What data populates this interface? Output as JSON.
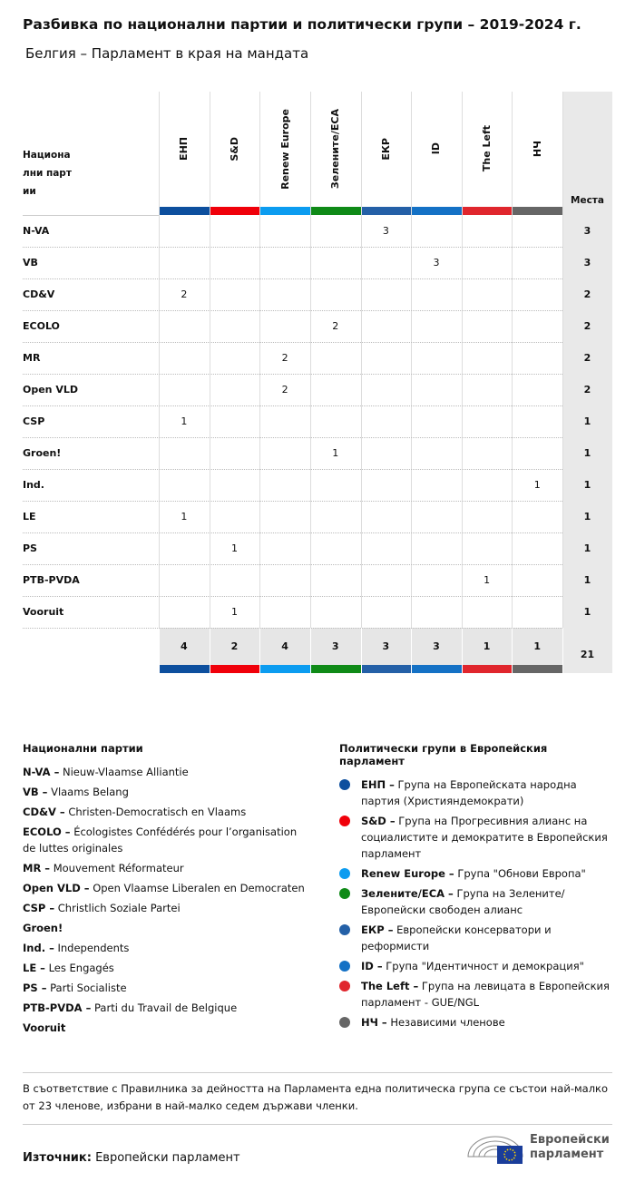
{
  "title": "Разбивка по национални партии и политически групи – 2019-2024 г.",
  "subtitle": "Белгия – Парламент в края на мандата",
  "table": {
    "corner": "Национални партии",
    "seats_header": "Места",
    "groups": [
      {
        "name": "ЕНП",
        "color": "#0d4f9e"
      },
      {
        "name": "S&D",
        "color": "#f0000a"
      },
      {
        "name": "Renew Europe",
        "color": "#0c9cf0"
      },
      {
        "name": "Зелените/ЕСА",
        "color": "#0f8a17"
      },
      {
        "name": "ЕКР",
        "color": "#2460a7"
      },
      {
        "name": "ID",
        "color": "#1471c5"
      },
      {
        "name": "The Left",
        "color": "#e0262d"
      },
      {
        "name": "НЧ",
        "color": "#666666"
      }
    ],
    "rows": [
      {
        "party": "N-VA",
        "cells": [
          null,
          null,
          null,
          null,
          3,
          null,
          null,
          null
        ],
        "total": 3
      },
      {
        "party": "VB",
        "cells": [
          null,
          null,
          null,
          null,
          null,
          3,
          null,
          null
        ],
        "total": 3
      },
      {
        "party": "CD&V",
        "cells": [
          2,
          null,
          null,
          null,
          null,
          null,
          null,
          null
        ],
        "total": 2
      },
      {
        "party": "ECOLO",
        "cells": [
          null,
          null,
          null,
          2,
          null,
          null,
          null,
          null
        ],
        "total": 2
      },
      {
        "party": "MR",
        "cells": [
          null,
          null,
          2,
          null,
          null,
          null,
          null,
          null
        ],
        "total": 2
      },
      {
        "party": "Open VLD",
        "cells": [
          null,
          null,
          2,
          null,
          null,
          null,
          null,
          null
        ],
        "total": 2
      },
      {
        "party": "CSP",
        "cells": [
          1,
          null,
          null,
          null,
          null,
          null,
          null,
          null
        ],
        "total": 1
      },
      {
        "party": "Groen!",
        "cells": [
          null,
          null,
          null,
          1,
          null,
          null,
          null,
          null
        ],
        "total": 1
      },
      {
        "party": "Ind.",
        "cells": [
          null,
          null,
          null,
          null,
          null,
          null,
          null,
          1
        ],
        "total": 1
      },
      {
        "party": "LE",
        "cells": [
          1,
          null,
          null,
          null,
          null,
          null,
          null,
          null
        ],
        "total": 1
      },
      {
        "party": "PS",
        "cells": [
          null,
          1,
          null,
          null,
          null,
          null,
          null,
          null
        ],
        "total": 1
      },
      {
        "party": "PTB-PVDA",
        "cells": [
          null,
          null,
          null,
          null,
          null,
          null,
          1,
          null
        ],
        "total": 1
      },
      {
        "party": "Vooruit",
        "cells": [
          null,
          1,
          null,
          null,
          null,
          null,
          null,
          null
        ],
        "total": 1
      }
    ],
    "totals": {
      "cells": [
        4,
        2,
        4,
        3,
        3,
        3,
        1,
        1
      ],
      "total": 21
    }
  },
  "national_legend": {
    "heading": "Национални партии",
    "items": [
      {
        "abbr": "N-VA –",
        "full": "Nieuw-Vlaamse Alliantie"
      },
      {
        "abbr": "VB –",
        "full": "Vlaams Belang"
      },
      {
        "abbr": "CD&V –",
        "full": "Christen-Democratisch en Vlaams"
      },
      {
        "abbr": "ECOLO –",
        "full": "Écologistes Confédérés pour l’organisation de luttes originales"
      },
      {
        "abbr": "MR –",
        "full": "Mouvement Réformateur"
      },
      {
        "abbr": "Open VLD –",
        "full": "Open Vlaamse Liberalen en Democraten"
      },
      {
        "abbr": "CSP –",
        "full": "Christlich Soziale Partei"
      },
      {
        "abbr": "Groen!"
      },
      {
        "abbr": "Ind. –",
        "full": "Independents"
      },
      {
        "abbr": "LE –",
        "full": "Les Engagés"
      },
      {
        "abbr": "PS –",
        "full": "Parti Socialiste"
      },
      {
        "abbr": "PTB-PVDA –",
        "full": "Parti du Travail de Belgique"
      },
      {
        "abbr": "Vooruit"
      }
    ]
  },
  "group_legend": {
    "heading": "Политически групи в Европейския парламент",
    "items": [
      {
        "abbr": "ЕНП –",
        "full": "Група на Европейската народна партия (Християндемократи)",
        "color": "#0d4f9e"
      },
      {
        "abbr": "S&D –",
        "full": "Група на Прогресивния алианс на социалистите и демократите в Европейския парламент",
        "color": "#f0000a"
      },
      {
        "abbr": "Renew Europe –",
        "full": "Група \"Обнови Европа\"",
        "color": "#0c9cf0"
      },
      {
        "abbr": "Зелените/ЕСА –",
        "full": "Група на Зелените/Европейски свободен алианс",
        "color": "#0f8a17"
      },
      {
        "abbr": "ЕКР –",
        "full": "Европейски консерватори и реформисти",
        "color": "#2460a7"
      },
      {
        "abbr": "ID –",
        "full": "Група \"Идентичност и демокрация\"",
        "color": "#1471c5"
      },
      {
        "abbr": "The Left –",
        "full": "Група на левицата в Европейския парламент - GUE/NGL",
        "color": "#e0262d"
      },
      {
        "abbr": "НЧ –",
        "full": "Независими членове",
        "color": "#666666"
      }
    ]
  },
  "footnote": "В съответствие с Правилника за дейността на Парламента една политическа група се състои най-малко от 23 членове, избрани в най-малко седем държави членки.",
  "source": {
    "label": "Източник:",
    "text": "Европейски парламент"
  },
  "logo": "Европейски парламент"
}
